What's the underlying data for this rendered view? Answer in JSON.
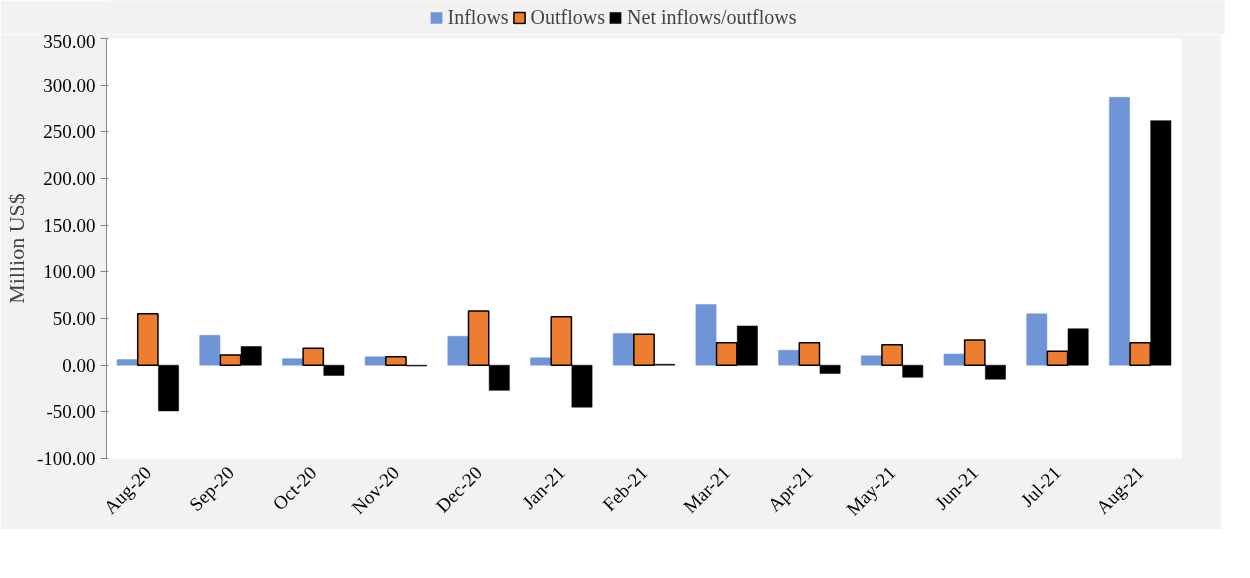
{
  "chart_data": {
    "type": "bar",
    "ylabel": "Million US$",
    "categories": [
      "Aug-20",
      "Sep-20",
      "Oct-20",
      "Nov-20",
      "Dec-20",
      "Jan-21",
      "Feb-21",
      "Mar-21",
      "Apr-21",
      "May-21",
      "Jun-21",
      "Jul-21",
      "Aug-21"
    ],
    "series": [
      {
        "name": "Inflows",
        "color": "#6f95d6",
        "values": [
          6,
          32,
          7,
          9,
          31,
          8,
          34,
          65,
          16,
          10,
          12,
          55,
          287
        ]
      },
      {
        "name": "Outflows",
        "color": "#ed7d31",
        "values": [
          55,
          11,
          18,
          9,
          58,
          52,
          33,
          24,
          24,
          22,
          27,
          15,
          24
        ]
      },
      {
        "name": "Net inflows/outflows",
        "color": "#000000",
        "values": [
          -49,
          20,
          -11,
          -1,
          -27,
          -45,
          1,
          42,
          -9,
          -13,
          -15,
          39,
          262
        ]
      }
    ],
    "ylim": [
      -100,
      350
    ],
    "yticks": [
      {
        "value": -100,
        "label": "-100.00"
      },
      {
        "value": -50,
        "label": "-50.00"
      },
      {
        "value": 0,
        "label": "0.00"
      },
      {
        "value": 50,
        "label": "50.00"
      },
      {
        "value": 100,
        "label": "100.00"
      },
      {
        "value": 150,
        "label": "150.00"
      },
      {
        "value": 200,
        "label": "200.00"
      },
      {
        "value": 250,
        "label": "250.00"
      },
      {
        "value": 300,
        "label": "300.00"
      },
      {
        "value": 350,
        "label": "350.00"
      }
    ],
    "grid": false,
    "legend": "top"
  }
}
